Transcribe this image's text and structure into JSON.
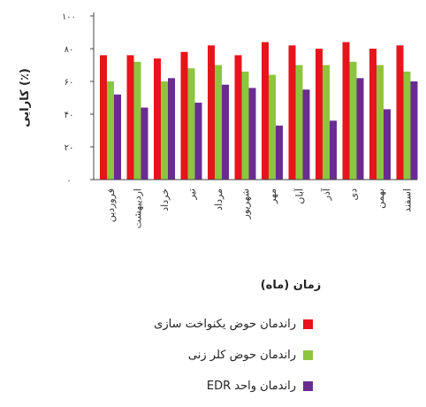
{
  "chart_data": {
    "type": "bar",
    "title": "",
    "xlabel": "زمان (ماه)",
    "ylabel": "کارایی (٪)",
    "ylim": [
      0,
      100
    ],
    "yticks": [
      "۰",
      "۲۰",
      "۴۰",
      "۶۰",
      "۸۰",
      "۱۰۰"
    ],
    "yticks_values": [
      0,
      20,
      40,
      60,
      80,
      100
    ],
    "grid": false,
    "legend_position": "bottom",
    "categories": [
      "فروردین",
      "اردیبهشت",
      "خرداد",
      "تیر",
      "مرداد",
      "شهریور",
      "مهر",
      "آبان",
      "آذر",
      "دی",
      "بهمن",
      "اسفند"
    ],
    "series": [
      {
        "name": "راندمان حوض یکنواخت سازی",
        "color": "#e8141b",
        "values": [
          76,
          76,
          74,
          78,
          82,
          76,
          84,
          82,
          80,
          84,
          80,
          82
        ]
      },
      {
        "name": "راندمان حوض کلر زنی",
        "color": "#8cc63f",
        "values": [
          60,
          72,
          60,
          68,
          70,
          66,
          64,
          70,
          70,
          72,
          70,
          66
        ]
      },
      {
        "name": "راندمان واحد EDR",
        "color": "#6a2c91",
        "values": [
          52,
          44,
          62,
          47,
          58,
          56,
          33,
          55,
          36,
          62,
          43,
          60
        ]
      }
    ]
  }
}
